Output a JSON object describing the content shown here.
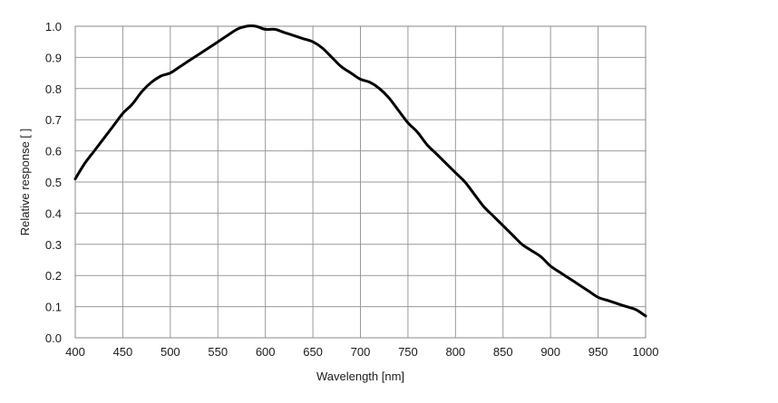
{
  "chart_data": {
    "type": "line",
    "title": "",
    "xlabel": "Wavelength [nm]",
    "ylabel": "Relative response [ ]",
    "xlim": [
      400,
      1000
    ],
    "ylim": [
      0,
      1.0
    ],
    "grid": true,
    "x_ticks": [
      "400",
      "450",
      "500",
      "550",
      "600",
      "650",
      "700",
      "750",
      "800",
      "850",
      "900",
      "950",
      "1000"
    ],
    "y_ticks": [
      "0.0",
      "0.1",
      "0.2",
      "0.3",
      "0.4",
      "0.5",
      "0.6",
      "0.7",
      "0.8",
      "0.9",
      "1.0"
    ],
    "series": [
      {
        "line_color": "#000000",
        "x": [
          400,
          410,
          420,
          430,
          440,
          450,
          460,
          470,
          480,
          490,
          500,
          510,
          520,
          530,
          540,
          550,
          560,
          570,
          580,
          590,
          600,
          610,
          620,
          630,
          640,
          650,
          660,
          670,
          680,
          690,
          700,
          710,
          720,
          730,
          740,
          750,
          760,
          770,
          780,
          790,
          800,
          810,
          820,
          830,
          840,
          850,
          860,
          870,
          880,
          890,
          900,
          910,
          920,
          930,
          940,
          950,
          960,
          970,
          980,
          990,
          1000
        ],
        "y": [
          0.51,
          0.56,
          0.6,
          0.64,
          0.68,
          0.72,
          0.75,
          0.79,
          0.82,
          0.84,
          0.85,
          0.87,
          0.89,
          0.91,
          0.93,
          0.95,
          0.97,
          0.99,
          1.0,
          1.0,
          0.99,
          0.99,
          0.98,
          0.97,
          0.96,
          0.95,
          0.93,
          0.9,
          0.87,
          0.85,
          0.83,
          0.82,
          0.8,
          0.77,
          0.73,
          0.69,
          0.66,
          0.62,
          0.59,
          0.56,
          0.53,
          0.5,
          0.46,
          0.42,
          0.39,
          0.36,
          0.33,
          0.3,
          0.28,
          0.26,
          0.23,
          0.21,
          0.19,
          0.17,
          0.15,
          0.13,
          0.12,
          0.11,
          0.1,
          0.09,
          0.07
        ]
      }
    ]
  }
}
